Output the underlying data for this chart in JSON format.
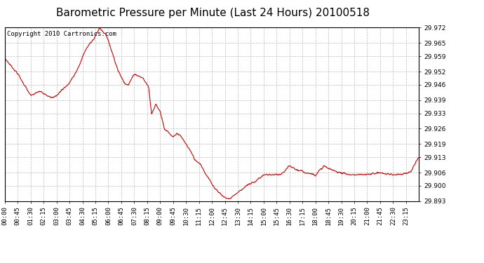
{
  "title": "Barometric Pressure per Minute (Last 24 Hours) 20100518",
  "copyright": "Copyright 2010 Cartronics.com",
  "line_color": "#cc0000",
  "bg_color": "#ffffff",
  "grid_color": "#bbbbbb",
  "ylim": [
    29.893,
    29.972
  ],
  "yticks": [
    29.893,
    29.9,
    29.906,
    29.913,
    29.919,
    29.926,
    29.933,
    29.939,
    29.946,
    29.952,
    29.959,
    29.965,
    29.972
  ],
  "xtick_labels": [
    "00:00",
    "00:45",
    "01:30",
    "02:15",
    "03:00",
    "03:45",
    "04:30",
    "05:15",
    "06:00",
    "06:45",
    "07:30",
    "08:15",
    "09:00",
    "09:45",
    "10:30",
    "11:15",
    "12:00",
    "12:45",
    "13:30",
    "14:15",
    "15:00",
    "15:45",
    "16:30",
    "17:15",
    "18:00",
    "18:45",
    "19:30",
    "20:15",
    "21:00",
    "21:45",
    "22:30",
    "23:15"
  ],
  "title_fontsize": 11,
  "tick_fontsize": 6.5,
  "copyright_fontsize": 6.5,
  "waypoints_x": [
    0,
    45,
    90,
    120,
    140,
    160,
    180,
    200,
    220,
    240,
    260,
    280,
    310,
    330,
    355,
    375,
    395,
    415,
    430,
    450,
    465,
    480,
    500,
    510,
    525,
    540,
    555,
    570,
    585,
    600,
    615,
    630,
    645,
    660,
    680,
    700,
    715,
    730,
    745,
    760,
    780,
    810,
    840,
    870,
    900,
    930,
    960,
    990,
    1020,
    1050,
    1080,
    1110,
    1140,
    1170,
    1200,
    1250,
    1300,
    1350,
    1410,
    1439
  ],
  "waypoints_y": [
    29.958,
    29.951,
    29.941,
    29.943,
    29.942,
    29.94,
    29.941,
    29.944,
    29.946,
    29.95,
    29.955,
    29.962,
    29.967,
    29.972,
    29.968,
    29.96,
    29.952,
    29.947,
    29.946,
    29.951,
    29.95,
    29.949,
    29.945,
    29.933,
    29.937,
    29.934,
    29.926,
    29.924,
    29.922,
    29.924,
    29.922,
    29.919,
    29.916,
    29.912,
    29.91,
    29.905,
    29.902,
    29.899,
    29.897,
    29.895,
    29.894,
    29.897,
    29.9,
    29.902,
    29.905,
    29.905,
    29.905,
    29.909,
    29.907,
    29.906,
    29.905,
    29.909,
    29.907,
    29.906,
    29.905,
    29.905,
    29.906,
    29.905,
    29.906,
    29.913
  ]
}
